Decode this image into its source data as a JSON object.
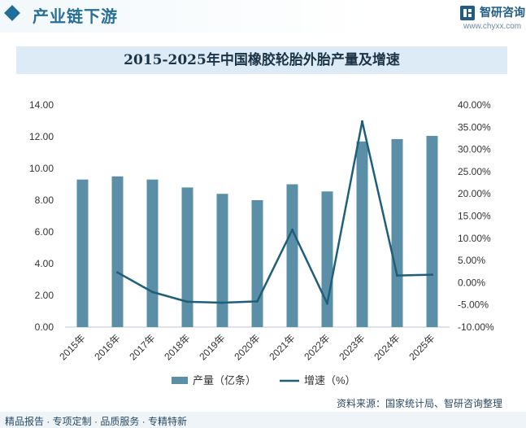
{
  "header": {
    "section_title": "产业链下游"
  },
  "brand": {
    "name": "智研咨询",
    "url": "www.chyxx.com"
  },
  "source": "资料来源：国家统计局、智研咨询整理",
  "footer": {
    "tagline": "精品报告 · 专项定制 · 品质服务 · 专精特新"
  },
  "colors": {
    "bar": "#5b8fa8",
    "line": "#1f5f7a",
    "title_band": "#dcebf5",
    "accent": "#1f6f9a"
  },
  "chart_data": {
    "type": "bar",
    "title": "2015-2025年中国橡胶轮胎外胎产量及增速",
    "categories": [
      "2015年",
      "2016年",
      "2017年",
      "2018年",
      "2019年",
      "2020年",
      "2021年",
      "2022年",
      "2023年",
      "2024年",
      "2025年"
    ],
    "series": [
      {
        "name": "产量（亿条）",
        "type": "bar",
        "axis": "left",
        "values": [
          9.3,
          9.5,
          9.3,
          8.8,
          8.4,
          8.0,
          9.0,
          8.55,
          11.7,
          11.85,
          12.05
        ]
      },
      {
        "name": "增速（%）",
        "type": "line",
        "axis": "right",
        "values": [
          null,
          2.3,
          -2.1,
          -4.3,
          -4.5,
          -4.2,
          11.9,
          -4.7,
          36.3,
          1.6,
          1.8
        ]
      }
    ],
    "y_left": {
      "min": 0,
      "max": 14,
      "ticks": [
        "0.00",
        "2.00",
        "4.00",
        "6.00",
        "8.00",
        "10.00",
        "12.00",
        "14.00"
      ]
    },
    "y_right": {
      "min": -10,
      "max": 40,
      "ticks": [
        "-10.00%",
        "-5.00%",
        "0.00%",
        "5.00%",
        "10.00%",
        "15.00%",
        "20.00%",
        "25.00%",
        "30.00%",
        "35.00%",
        "40.00%"
      ]
    },
    "grid": false,
    "legend": "bottom"
  }
}
